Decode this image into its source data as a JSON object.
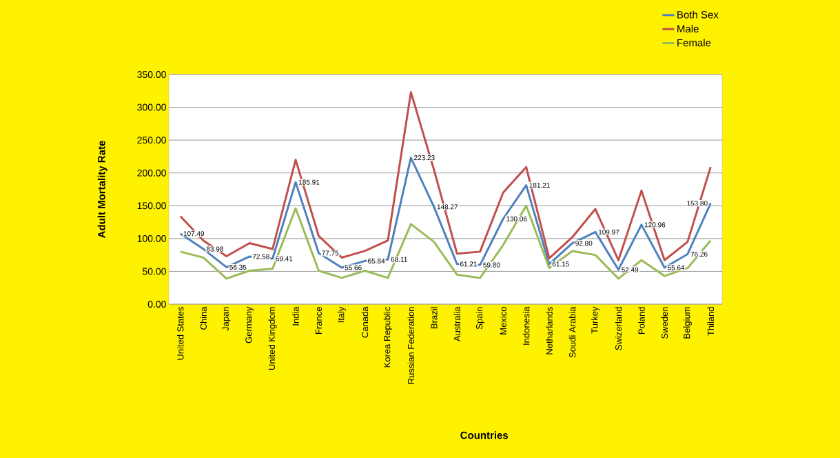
{
  "chart_data": {
    "type": "line",
    "xlabel": "Countries",
    "ylabel": "Adult Mortality Rate",
    "categories": [
      "United States",
      "China",
      "Japan",
      "Germany",
      "United Kingdom",
      "India",
      "France",
      "Italy",
      "Canada",
      "Korea Republic",
      "Russian Federation",
      "Brazil",
      "Australia",
      "Spain",
      "Mexico",
      "Indonesia",
      "Netharlands",
      "Soudi Arabia",
      "Turkey",
      "Swizerland",
      "Poland",
      "Sweden",
      "Belgium",
      "Thiland"
    ],
    "series": [
      {
        "name": "Both Sex",
        "color": "#4f81bd",
        "values": [
          107.49,
          83.98,
          56.35,
          72.58,
          69.41,
          185.91,
          77.75,
          55.66,
          65.84,
          68.11,
          223.23,
          148.27,
          61.21,
          59.8,
          130.06,
          181.21,
          61.15,
          92.8,
          109.97,
          52.49,
          120.96,
          55.64,
          76.26,
          153.8
        ],
        "value_labels": [
          "107.49",
          "83.98",
          "56.35",
          "72.58",
          "69.41",
          "185.91",
          "77.75",
          "55.66",
          "65.84",
          "68.11",
          "223.23",
          "148.27",
          "61.21",
          "59.80",
          "130.06",
          "181.21",
          "61.15",
          "92.80",
          "109.97",
          "52.49",
          "120.96",
          "55.64",
          "76.26",
          "153.80"
        ]
      },
      {
        "name": "Male",
        "color": "#c0504d",
        "values": [
          134,
          97,
          73,
          93,
          84,
          220,
          104,
          71,
          81,
          97,
          323,
          205,
          77,
          80,
          170,
          209,
          70,
          102,
          145,
          67,
          173,
          67,
          95,
          209
        ]
      },
      {
        "name": "Female",
        "color": "#9bbb59",
        "values": [
          80,
          71,
          39,
          51,
          54,
          146,
          51,
          40,
          51,
          40,
          122,
          95,
          45,
          40,
          90,
          150,
          55,
          81,
          75,
          39,
          67,
          43,
          55,
          97
        ]
      }
    ],
    "ylim": [
      0,
      350
    ],
    "yticks": [
      {
        "value": 0,
        "label": "0.00"
      },
      {
        "value": 50,
        "label": "50.00"
      },
      {
        "value": 100,
        "label": "100.00"
      },
      {
        "value": 150,
        "label": "150.00"
      },
      {
        "value": 200,
        "label": "200.00"
      },
      {
        "value": 250,
        "label": "250.00"
      },
      {
        "value": 300,
        "label": "300.00"
      },
      {
        "value": 350,
        "label": "350.00"
      }
    ],
    "grid": "y",
    "legend": "top right",
    "marker": "none",
    "line_style": "solid"
  }
}
